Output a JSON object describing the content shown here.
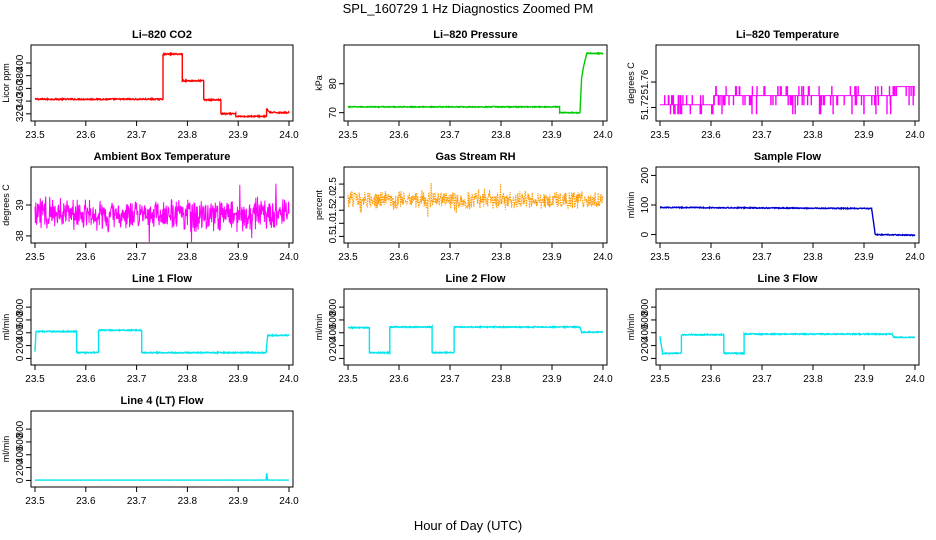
{
  "page": {
    "title": "SPL_160729  1 Hz Diagnostics Zoomed PM",
    "xlabel": "Hour of Day (UTC)"
  },
  "chart_data": [
    {
      "type": "line",
      "title": "Li–820 CO2",
      "ylabel": "Licor ppm",
      "xlim": [
        23.5,
        24.0
      ],
      "ylim": [
        315,
        422
      ],
      "x_ticks": [
        23.5,
        23.6,
        23.7,
        23.8,
        23.9,
        24.0
      ],
      "y_ticks": [
        320,
        340,
        360,
        380,
        400
      ],
      "color": "#ff0000",
      "style": "step",
      "noise": 1.0,
      "points": [
        [
          23.5,
          343
        ],
        [
          23.752,
          343
        ],
        [
          23.752,
          414
        ],
        [
          23.79,
          414
        ],
        [
          23.79,
          372
        ],
        [
          23.832,
          372
        ],
        [
          23.832,
          342
        ],
        [
          23.866,
          342
        ],
        [
          23.866,
          320
        ],
        [
          23.895,
          320
        ],
        [
          23.895,
          316
        ],
        [
          23.956,
          316
        ],
        [
          23.956,
          328
        ],
        [
          23.962,
          322
        ],
        [
          24.0,
          322
        ]
      ]
    },
    {
      "type": "line",
      "title": "Li–820 Pressure",
      "ylabel": "kPa",
      "xlim": [
        23.5,
        24.0
      ],
      "ylim": [
        68.5,
        92
      ],
      "x_ticks": [
        23.5,
        23.6,
        23.7,
        23.8,
        23.9,
        24.0
      ],
      "y_ticks": [
        70,
        80
      ],
      "color": "#00cc00",
      "style": "step",
      "noise": 0.15,
      "points": [
        [
          23.5,
          72
        ],
        [
          23.915,
          72
        ],
        [
          23.915,
          70
        ],
        [
          23.955,
          70
        ],
        [
          23.958,
          82
        ],
        [
          23.962,
          86
        ],
        [
          23.968,
          90.5
        ],
        [
          24.0,
          90.5
        ]
      ]
    },
    {
      "type": "line",
      "title": "Li–820 Temperature",
      "ylabel": "degrees C",
      "xlim": [
        23.5,
        24.0
      ],
      "ylim": [
        51.705,
        51.812
      ],
      "x_ticks": [
        23.5,
        23.6,
        23.7,
        23.8,
        23.9,
        24.0
      ],
      "y_ticks": [
        51.72,
        51.76
      ],
      "color": "#ff00ff",
      "style": "digital",
      "levels": [
        51.71,
        51.7243,
        51.7386,
        51.7529,
        51.7672,
        51.7815,
        51.7958
      ],
      "segments": [
        [
          23.5,
          23.605,
          1
        ],
        [
          23.605,
          23.96,
          2
        ],
        [
          23.96,
          23.972,
          3
        ],
        [
          23.972,
          24.0,
          3
        ]
      ]
    },
    {
      "type": "line",
      "title": "Ambient Box Temperature",
      "ylabel": "degrees C",
      "xlim": [
        23.5,
        24.0
      ],
      "ylim": [
        37.9,
        40.1
      ],
      "x_ticks": [
        23.5,
        23.6,
        23.7,
        23.8,
        23.9,
        24.0
      ],
      "y_ticks": [
        38.0,
        39.0
      ],
      "color": "#ff00ff",
      "style": "noise",
      "center": 38.7,
      "amplitude": 0.6,
      "trend": 0.05
    },
    {
      "type": "line",
      "title": "Gas Stream RH",
      "ylabel": "percent",
      "xlim": [
        23.5,
        24.0
      ],
      "ylim": [
        0.4,
        3.0
      ],
      "x_ticks": [
        23.5,
        23.6,
        23.7,
        23.8,
        23.9,
        24.0
      ],
      "y_ticks": [
        0.5,
        1.0,
        1.5,
        2.0,
        2.5
      ],
      "color": "#ff9900",
      "style": "noise",
      "center": 1.9,
      "amplitude": 0.4,
      "trend": 0.0,
      "dotted": true
    },
    {
      "type": "line",
      "title": "Sample Flow",
      "ylabel": "ml/min",
      "xlim": [
        23.5,
        24.0
      ],
      "ylim": [
        -15,
        215
      ],
      "x_ticks": [
        23.5,
        23.6,
        23.7,
        23.8,
        23.9,
        24.0
      ],
      "y_ticks": [
        0,
        100,
        200
      ],
      "color": "#0000cc",
      "style": "step",
      "noise": 1.5,
      "points": [
        [
          23.5,
          92
        ],
        [
          23.915,
          88
        ],
        [
          23.915,
          88
        ],
        [
          23.922,
          0
        ],
        [
          24.0,
          -2
        ]
      ]
    },
    {
      "type": "line",
      "title": "Line 1 Flow",
      "ylabel": "ml/min",
      "xlim": [
        23.5,
        24.0
      ],
      "ylim": [
        -40,
        1020
      ],
      "x_ticks": [
        23.5,
        23.6,
        23.7,
        23.8,
        23.9,
        24.0
      ],
      "y_ticks": [
        0,
        200,
        400,
        600,
        800
      ],
      "color": "#00e5ee",
      "style": "step",
      "noise": 8,
      "points": [
        [
          23.5,
          100
        ],
        [
          23.502,
          420
        ],
        [
          23.582,
          420
        ],
        [
          23.582,
          90
        ],
        [
          23.625,
          90
        ],
        [
          23.625,
          440
        ],
        [
          23.71,
          440
        ],
        [
          23.71,
          90
        ],
        [
          23.955,
          90
        ],
        [
          23.958,
          360
        ],
        [
          24.0,
          360
        ]
      ]
    },
    {
      "type": "line",
      "title": "Line 2 Flow",
      "ylabel": "ml/min",
      "xlim": [
        23.5,
        24.0
      ],
      "ylim": [
        -40,
        1020
      ],
      "x_ticks": [
        23.5,
        23.6,
        23.7,
        23.8,
        23.9,
        24.0
      ],
      "y_ticks": [
        0,
        200,
        400,
        600,
        800
      ],
      "color": "#00e5ee",
      "style": "step",
      "noise": 8,
      "points": [
        [
          23.5,
          480
        ],
        [
          23.542,
          480
        ],
        [
          23.542,
          90
        ],
        [
          23.582,
          90
        ],
        [
          23.582,
          490
        ],
        [
          23.665,
          490
        ],
        [
          23.665,
          90
        ],
        [
          23.708,
          90
        ],
        [
          23.708,
          490
        ],
        [
          23.955,
          490
        ],
        [
          23.958,
          410
        ],
        [
          24.0,
          410
        ]
      ]
    },
    {
      "type": "line",
      "title": "Line 3 Flow",
      "ylabel": "ml/min",
      "xlim": [
        23.5,
        24.0
      ],
      "ylim": [
        -40,
        1020
      ],
      "x_ticks": [
        23.5,
        23.6,
        23.7,
        23.8,
        23.9,
        24.0
      ],
      "y_ticks": [
        0,
        200,
        400,
        600,
        800
      ],
      "color": "#00e5ee",
      "style": "step",
      "noise": 8,
      "points": [
        [
          23.5,
          340
        ],
        [
          23.505,
          80
        ],
        [
          23.542,
          80
        ],
        [
          23.542,
          370
        ],
        [
          23.625,
          370
        ],
        [
          23.625,
          80
        ],
        [
          23.665,
          80
        ],
        [
          23.665,
          380
        ],
        [
          23.955,
          380
        ],
        [
          23.958,
          330
        ],
        [
          24.0,
          330
        ]
      ]
    },
    {
      "type": "line",
      "title": "Line 4 (LT) Flow",
      "ylabel": "ml/min",
      "xlim": [
        23.5,
        24.0
      ],
      "ylim": [
        -40,
        1020
      ],
      "x_ticks": [
        23.5,
        23.6,
        23.7,
        23.8,
        23.9,
        24.0
      ],
      "y_ticks": [
        0,
        200,
        400,
        600,
        800
      ],
      "color": "#00e5ee",
      "style": "step",
      "noise": 1,
      "points": [
        [
          23.5,
          5
        ],
        [
          23.955,
          5
        ],
        [
          23.956,
          110
        ],
        [
          23.958,
          5
        ],
        [
          24.0,
          5
        ]
      ]
    }
  ]
}
